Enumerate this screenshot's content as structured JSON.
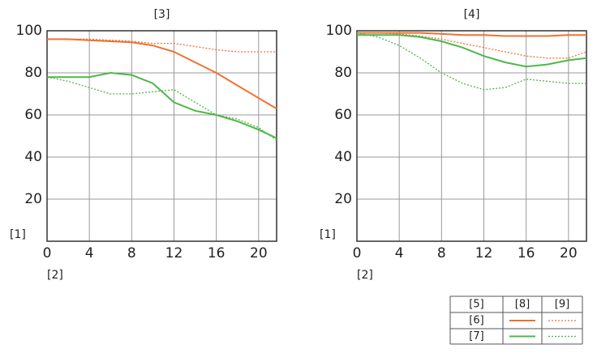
{
  "chart_data": [
    {
      "type": "line",
      "title": "[3]",
      "y_label": "[1]",
      "x_label": "[2]",
      "x": [
        0,
        2,
        4,
        6,
        8,
        10,
        12,
        14,
        16,
        18,
        20,
        21.7
      ],
      "xlim": [
        0,
        21.7
      ],
      "ylim": [
        0,
        100
      ],
      "xticks": [
        0,
        4,
        8,
        12,
        16,
        20
      ],
      "yticks": [
        20,
        40,
        60,
        80,
        100
      ],
      "grid": true,
      "series": [
        {
          "color": "#f07030",
          "dash": "solid",
          "values": [
            96,
            96,
            95.5,
            95,
            94.5,
            93,
            90,
            85,
            80,
            74,
            68,
            63
          ]
        },
        {
          "color": "#f07030",
          "dash": "dotted",
          "values": [
            96,
            96,
            96,
            95.5,
            95,
            94,
            94,
            92.5,
            91,
            90,
            90,
            90
          ]
        },
        {
          "color": "#4cb848",
          "dash": "solid",
          "values": [
            78,
            78,
            78,
            80,
            79,
            75,
            66,
            62,
            60,
            57,
            53,
            49
          ]
        },
        {
          "color": "#4cb848",
          "dash": "dotted",
          "values": [
            78,
            76,
            73,
            70,
            70,
            71,
            72,
            66,
            60,
            58,
            54,
            48
          ]
        }
      ]
    },
    {
      "type": "line",
      "title": "[4]",
      "y_label": "[1]",
      "x_label": "[2]",
      "x": [
        0,
        2,
        4,
        6,
        8,
        10,
        12,
        14,
        16,
        18,
        20,
        21.7
      ],
      "xlim": [
        0,
        21.7
      ],
      "ylim": [
        0,
        100
      ],
      "xticks": [
        0,
        4,
        8,
        12,
        16,
        20
      ],
      "yticks": [
        20,
        40,
        60,
        80,
        100
      ],
      "grid": true,
      "series": [
        {
          "color": "#f07030",
          "dash": "solid",
          "values": [
            99,
            99,
            99,
            99,
            98.5,
            98,
            98,
            97.5,
            97.5,
            97.5,
            98,
            98
          ]
        },
        {
          "color": "#f07030",
          "dash": "dotted",
          "values": [
            99,
            99,
            98.5,
            97.5,
            96,
            94,
            92,
            90,
            88,
            87,
            87,
            90
          ]
        },
        {
          "color": "#4cb848",
          "dash": "solid",
          "values": [
            98,
            98,
            98,
            97,
            95,
            92,
            88,
            85,
            83,
            84,
            86,
            87
          ]
        },
        {
          "color": "#4cb848",
          "dash": "dotted",
          "values": [
            99,
            97,
            93,
            87,
            80,
            75,
            72,
            73,
            77,
            76,
            75,
            75
          ]
        }
      ]
    }
  ],
  "legend_table": {
    "header": [
      "[5]",
      "[8]",
      "[9]"
    ],
    "rows": [
      "[6]",
      "[7]"
    ]
  }
}
